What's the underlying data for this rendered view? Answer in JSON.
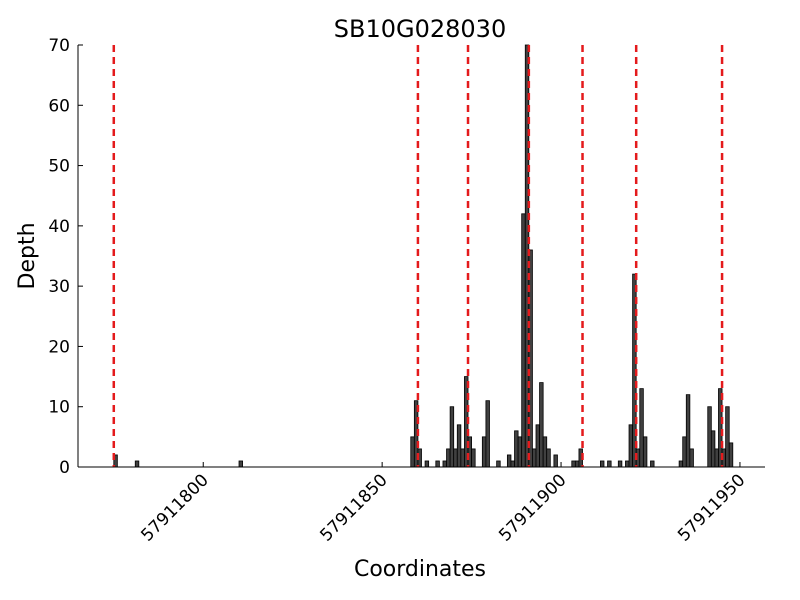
{
  "chart_data": {
    "type": "bar",
    "title": "SB10G028030",
    "xlabel": "Coordinates",
    "ylabel": "Depth",
    "x": [
      57911775,
      57911781,
      57911810,
      57911858,
      57911859,
      57911860,
      57911862,
      57911865,
      57911867,
      57911868,
      57911869,
      57911870,
      57911871,
      57911872,
      57911873,
      57911874,
      57911875,
      57911878,
      57911879,
      57911882,
      57911885,
      57911886,
      57911887,
      57911888,
      57911889,
      57911890,
      57911891,
      57911892,
      57911893,
      57911894,
      57911895,
      57911896,
      57911898,
      57911903,
      57911904,
      57911905,
      57911911,
      57911913,
      57911916,
      57911918,
      57911919,
      57911920,
      57911921,
      57911922,
      57911923,
      57911925,
      57911933,
      57911934,
      57911935,
      57911936,
      57911941,
      57911942,
      57911943,
      57911944,
      57911945,
      57911946,
      57911947
    ],
    "values": [
      2,
      1,
      1,
      5,
      11,
      3,
      1,
      1,
      1,
      3,
      10,
      3,
      7,
      3,
      15,
      5,
      3,
      5,
      11,
      1,
      2,
      1,
      6,
      5,
      42,
      70,
      36,
      3,
      7,
      14,
      5,
      3,
      2,
      1,
      1,
      3,
      1,
      1,
      1,
      1,
      7,
      32,
      3,
      13,
      5,
      1,
      1,
      5,
      12,
      3,
      10,
      6,
      3,
      13,
      3,
      10,
      4
    ],
    "color": "#404040",
    "vlines": [
      57911775,
      57911860,
      57911874,
      57911891,
      57911906,
      57911921,
      57911945
    ],
    "vline_color": "#e41a1c",
    "xlim": [
      57911765,
      57911957
    ],
    "ylim": [
      0,
      70
    ],
    "xticks": [
      57911800,
      57911850,
      57911900,
      57911950
    ],
    "yticks": [
      0,
      10,
      20,
      30,
      40,
      50,
      60,
      70
    ]
  }
}
